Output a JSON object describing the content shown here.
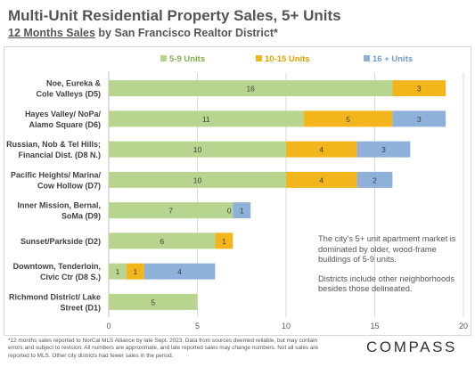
{
  "title": "Multi-Unit Residential Property Sales, 5+ Units",
  "subtitle": {
    "underlined": "12 Months Sales",
    "rest": " by San Francisco Realtor District*"
  },
  "chart_data": {
    "type": "bar",
    "orientation": "horizontal",
    "stacked": true,
    "categories": [
      [
        "Noe, Eureka &",
        "Cole Valleys (D5)"
      ],
      [
        "Hayes Valley/ NoPa/",
        "Alamo Square (D6)"
      ],
      [
        "Russian, Nob & Tel Hills;",
        "Financial Dist. (D8 N.)"
      ],
      [
        "Pacific Heights/ Marina/",
        "Cow Hollow (D7)"
      ],
      [
        "Inner Mission, Bernal,",
        "SoMa (D9)"
      ],
      [
        "Sunset/Parkside (D2)"
      ],
      [
        "Downtown, Tenderloin,",
        "Civic Ctr (D8 S.)"
      ],
      [
        "Richmond District/ Lake",
        "Street (D1)"
      ]
    ],
    "series": [
      {
        "name": "5-9 Units",
        "color": "#b7d58e",
        "values": [
          16,
          11,
          10,
          10,
          7,
          6,
          1,
          5
        ]
      },
      {
        "name": "10-15 Units",
        "color": "#f2b51c",
        "values": [
          3,
          5,
          4,
          4,
          0,
          1,
          1,
          0
        ]
      },
      {
        "name": "16 + Units",
        "color": "#8eb1d9",
        "values": [
          0,
          3,
          3,
          2,
          1,
          0,
          4,
          0
        ]
      }
    ],
    "data_labels": [
      [
        "16",
        "3",
        ""
      ],
      [
        "11",
        "5",
        "3"
      ],
      [
        "10",
        "4",
        "3"
      ],
      [
        "10",
        "4",
        "2"
      ],
      [
        "7",
        "0",
        "1"
      ],
      [
        "6",
        "1",
        ""
      ],
      [
        "1",
        "1",
        "4"
      ],
      [
        "5",
        "",
        ""
      ]
    ],
    "xlim": [
      0,
      20
    ],
    "xticks": [
      "0",
      "5",
      "10",
      "15",
      "20"
    ],
    "xgrid": true,
    "legend_position": "top"
  },
  "annotation": {
    "line1": "The city's 5+ unit apartment market is dominated by older, wood-frame buildings of 5-9 units.",
    "line2": "Districts include other neighborhoods besides those delineated."
  },
  "footnote": "*12 months sales reported to NorCal MLS Alliance by late Sept. 2023. Data from sources deemed reliable, but may contain errors and subject to revision. All numbers are approximate, and late reported sales may change numbers. Not all sales are reported to MLS. Other city districts had fewer sales in the period.",
  "brand": "COMPASS"
}
